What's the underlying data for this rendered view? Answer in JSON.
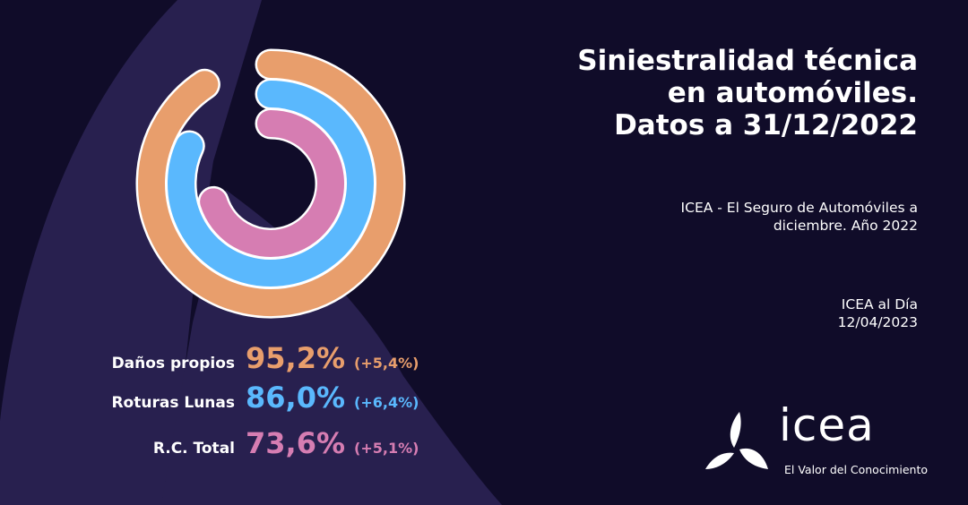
{
  "title_lines": [
    "Siniestralidad técnica",
    "en automóviles.",
    "Datos a 31/12/2022"
  ],
  "source_lines": [
    "ICEA - El Seguro de Automóviles a",
    "diciembre. Año 2022"
  ],
  "publication_lines": [
    "ICEA al Día",
    "12/04/2023"
  ],
  "logo": {
    "word": "icea",
    "tagline": "El Valor del Conocimiento"
  },
  "colors": {
    "background": "#100c29",
    "shape": "#28204f",
    "danos": "#e89e6c",
    "lunas": "#5ab8fd",
    "rc": "#d67db2"
  },
  "chart_data": {
    "type": "radial-bar",
    "title": "Siniestralidad técnica en automóviles. Datos a 31/12/2022",
    "unit": "%",
    "series": [
      {
        "name": "Daños propios",
        "value": 95.2,
        "value_label": "95,2%",
        "change": 5.4,
        "change_label": "(+5,4%)",
        "color": "#e89e6c"
      },
      {
        "name": "Roturas Lunas",
        "value": 86.0,
        "value_label": "86,0%",
        "change": 6.4,
        "change_label": "(+6,4%)",
        "color": "#5ab8fd"
      },
      {
        "name": "R.C. Total",
        "value": 73.6,
        "value_label": "73,6%",
        "change": 5.1,
        "change_label": "(+5,1%)",
        "color": "#d67db2"
      }
    ]
  }
}
